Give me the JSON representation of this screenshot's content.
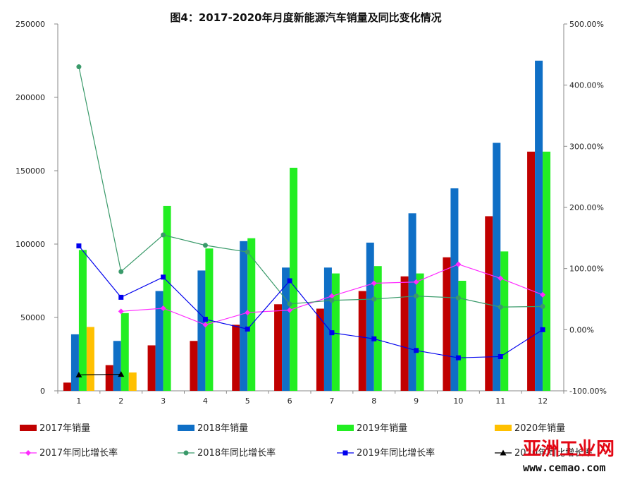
{
  "chart_data": {
    "type": "bar",
    "title": "图4：2017-2020年月度新能源汽车销量及同比变化情况",
    "categories": [
      "1",
      "2",
      "3",
      "4",
      "5",
      "6",
      "7",
      "8",
      "9",
      "10",
      "11",
      "12"
    ],
    "y_left": {
      "min": 0,
      "max": 250000,
      "ticks": [
        "0",
        "50000",
        "100000",
        "150000",
        "200000",
        "250000"
      ]
    },
    "y_right": {
      "min": -100,
      "max": 500,
      "ticks": [
        "-100.00%",
        "0.00%",
        "100.00%",
        "200.00%",
        "300.00%",
        "400.00%",
        "500.00%"
      ]
    },
    "bar_series": [
      {
        "name": "2017年销量",
        "color": "#c00000",
        "values": [
          5600,
          17500,
          31000,
          34000,
          45000,
          59000,
          56000,
          68000,
          78000,
          91000,
          119000,
          163000
        ]
      },
      {
        "name": "2018年销量",
        "color": "#0f6fc6",
        "values": [
          38500,
          34000,
          68000,
          82000,
          102000,
          84000,
          84000,
          101000,
          121000,
          138000,
          169000,
          225000
        ]
      },
      {
        "name": "2019年销量",
        "color": "#22ee22",
        "values": [
          96000,
          53000,
          126000,
          97000,
          104000,
          152000,
          80000,
          85000,
          80000,
          75000,
          95000,
          163000
        ]
      },
      {
        "name": "2020年销量",
        "color": "#ffc000",
        "values": [
          43500,
          12500,
          null,
          null,
          null,
          null,
          null,
          null,
          null,
          null,
          null,
          null
        ]
      }
    ],
    "line_series": [
      {
        "name": "2017年同比增长率",
        "color": "#ff2bff",
        "marker": "diamond",
        "values": [
          null,
          30,
          35,
          8,
          28,
          32,
          55,
          76,
          78,
          107,
          84,
          57
        ]
      },
      {
        "name": "2018年同比增长率",
        "color": "#3a9a6a",
        "marker": "circle",
        "values": [
          430,
          95,
          155,
          138,
          127,
          42,
          48,
          50,
          55,
          52,
          37,
          38
        ]
      },
      {
        "name": "2019年同比增长率",
        "color": "#0000ee",
        "marker": "square",
        "values": [
          137,
          53,
          86,
          17,
          1,
          80,
          -5,
          -15,
          -34,
          -46,
          -44,
          0
        ]
      },
      {
        "name": "2020年同比增长率",
        "color": "#000000",
        "marker": "triangle",
        "values": [
          -74,
          -73,
          null,
          null,
          null,
          null,
          null,
          null,
          null,
          null,
          null,
          null
        ]
      }
    ]
  },
  "watermark": {
    "line1": "亚洲工业网",
    "line2": "www.cemao.com"
  }
}
